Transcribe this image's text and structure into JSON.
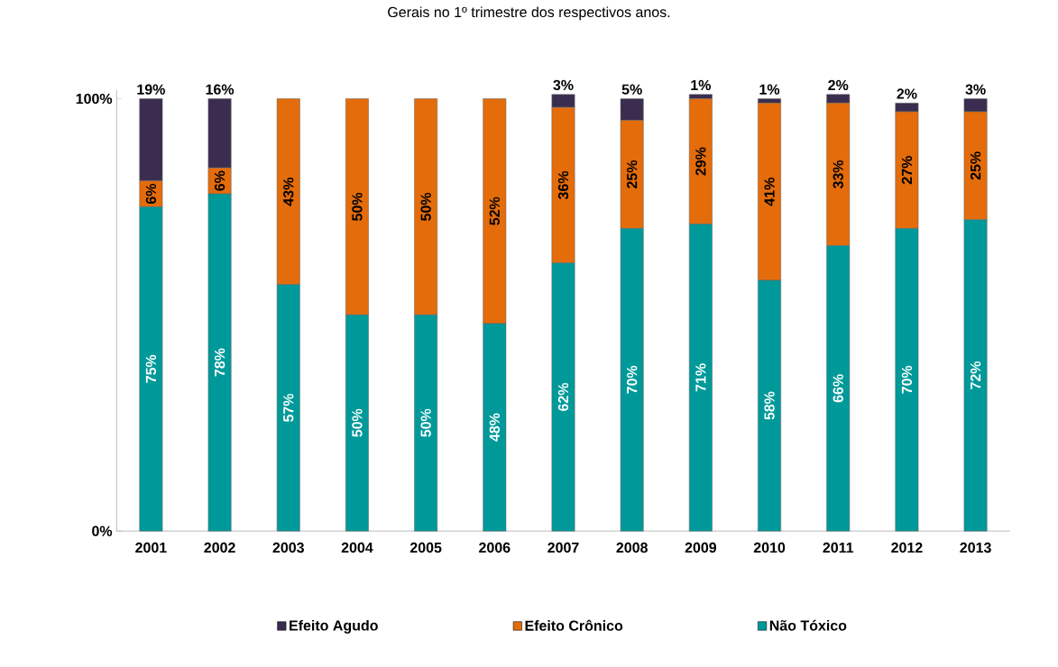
{
  "chart_data": {
    "type": "bar",
    "stacked": true,
    "title": "Gerais no 1º trimestre dos respectivos anos.",
    "categories": [
      "2001",
      "2002",
      "2003",
      "2004",
      "2005",
      "2006",
      "2007",
      "2008",
      "2009",
      "2010",
      "2011",
      "2012",
      "2013"
    ],
    "series": [
      {
        "name": "Não Tóxico",
        "color": "#009999",
        "values": [
          75,
          78,
          57,
          50,
          50,
          48,
          62,
          70,
          71,
          58,
          66,
          70,
          72
        ],
        "value_labels": [
          "75%",
          "78%",
          "57%",
          "50%",
          "50%",
          "48%",
          "62%",
          "70%",
          "71%",
          "58%",
          "66%",
          "70%",
          "72%"
        ]
      },
      {
        "name": "Efeito Crônico",
        "color": "#e46c0a",
        "values": [
          6,
          6,
          43,
          50,
          50,
          52,
          36,
          25,
          29,
          41,
          33,
          27,
          25
        ],
        "value_labels": [
          "6%",
          "6%",
          "43%",
          "50%",
          "50%",
          "52%",
          "36%",
          "25%",
          "29%",
          "41%",
          "33%",
          "27%",
          "25%"
        ]
      },
      {
        "name": "Efeito Agudo",
        "color": "#3b2d4f",
        "values": [
          19,
          16,
          0,
          0,
          0,
          0,
          3,
          5,
          1,
          1,
          2,
          2,
          3
        ],
        "value_labels": [
          "19%",
          "16%",
          null,
          null,
          null,
          null,
          "3%",
          "5%",
          "1%",
          "1%",
          "2%",
          "2%",
          "3%"
        ]
      }
    ],
    "ylim": [
      0,
      102
    ],
    "yticks": [
      {
        "value": 0,
        "label": "0%"
      },
      {
        "value": 100,
        "label": "100%"
      }
    ],
    "grid": false,
    "legend": "bottom"
  }
}
